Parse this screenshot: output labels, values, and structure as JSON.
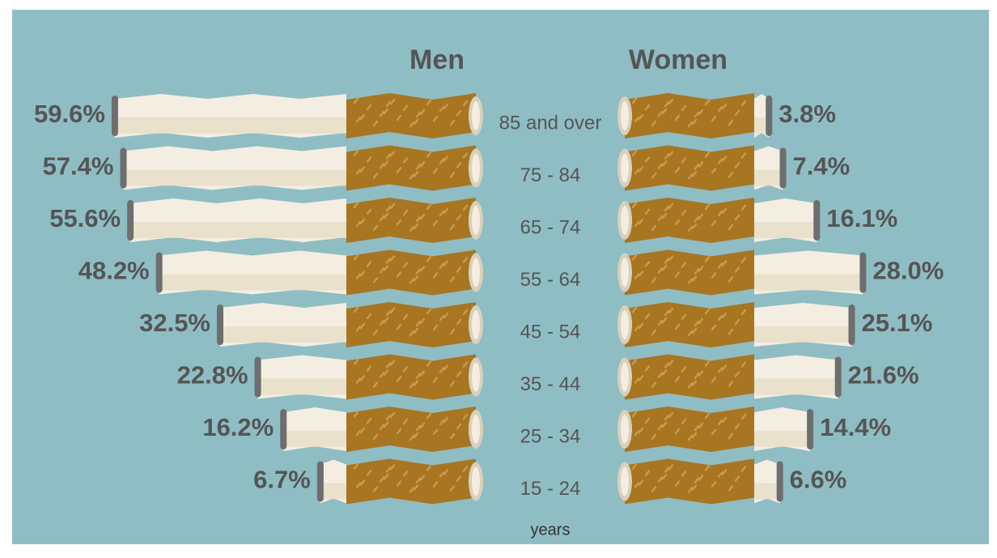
{
  "chart_data": {
    "type": "bar",
    "categories": [
      "85 and over",
      "75 - 84",
      "65 - 74",
      "55 - 64",
      "45 - 54",
      "35 - 44",
      "25 - 34",
      "15 - 24"
    ],
    "x_label": "years",
    "series": [
      {
        "name": "Men",
        "color": "#f3eee1",
        "values": [
          59.6,
          57.4,
          55.6,
          48.2,
          32.5,
          22.8,
          16.2,
          6.7
        ],
        "value_labels": [
          "59.6%",
          "57.4%",
          "55.6%",
          "48.2%",
          "32.5%",
          "22.8%",
          "16.2%",
          "6.7%"
        ]
      },
      {
        "name": "Women",
        "color": "#f3eee1",
        "values": [
          3.8,
          7.4,
          16.1,
          28.0,
          25.1,
          21.6,
          14.4,
          6.6
        ],
        "value_labels": [
          "3.8%",
          "7.4%",
          "16.1%",
          "28.0%",
          "25.1%",
          "21.6%",
          "14.4%",
          "6.6%"
        ]
      }
    ]
  }
}
